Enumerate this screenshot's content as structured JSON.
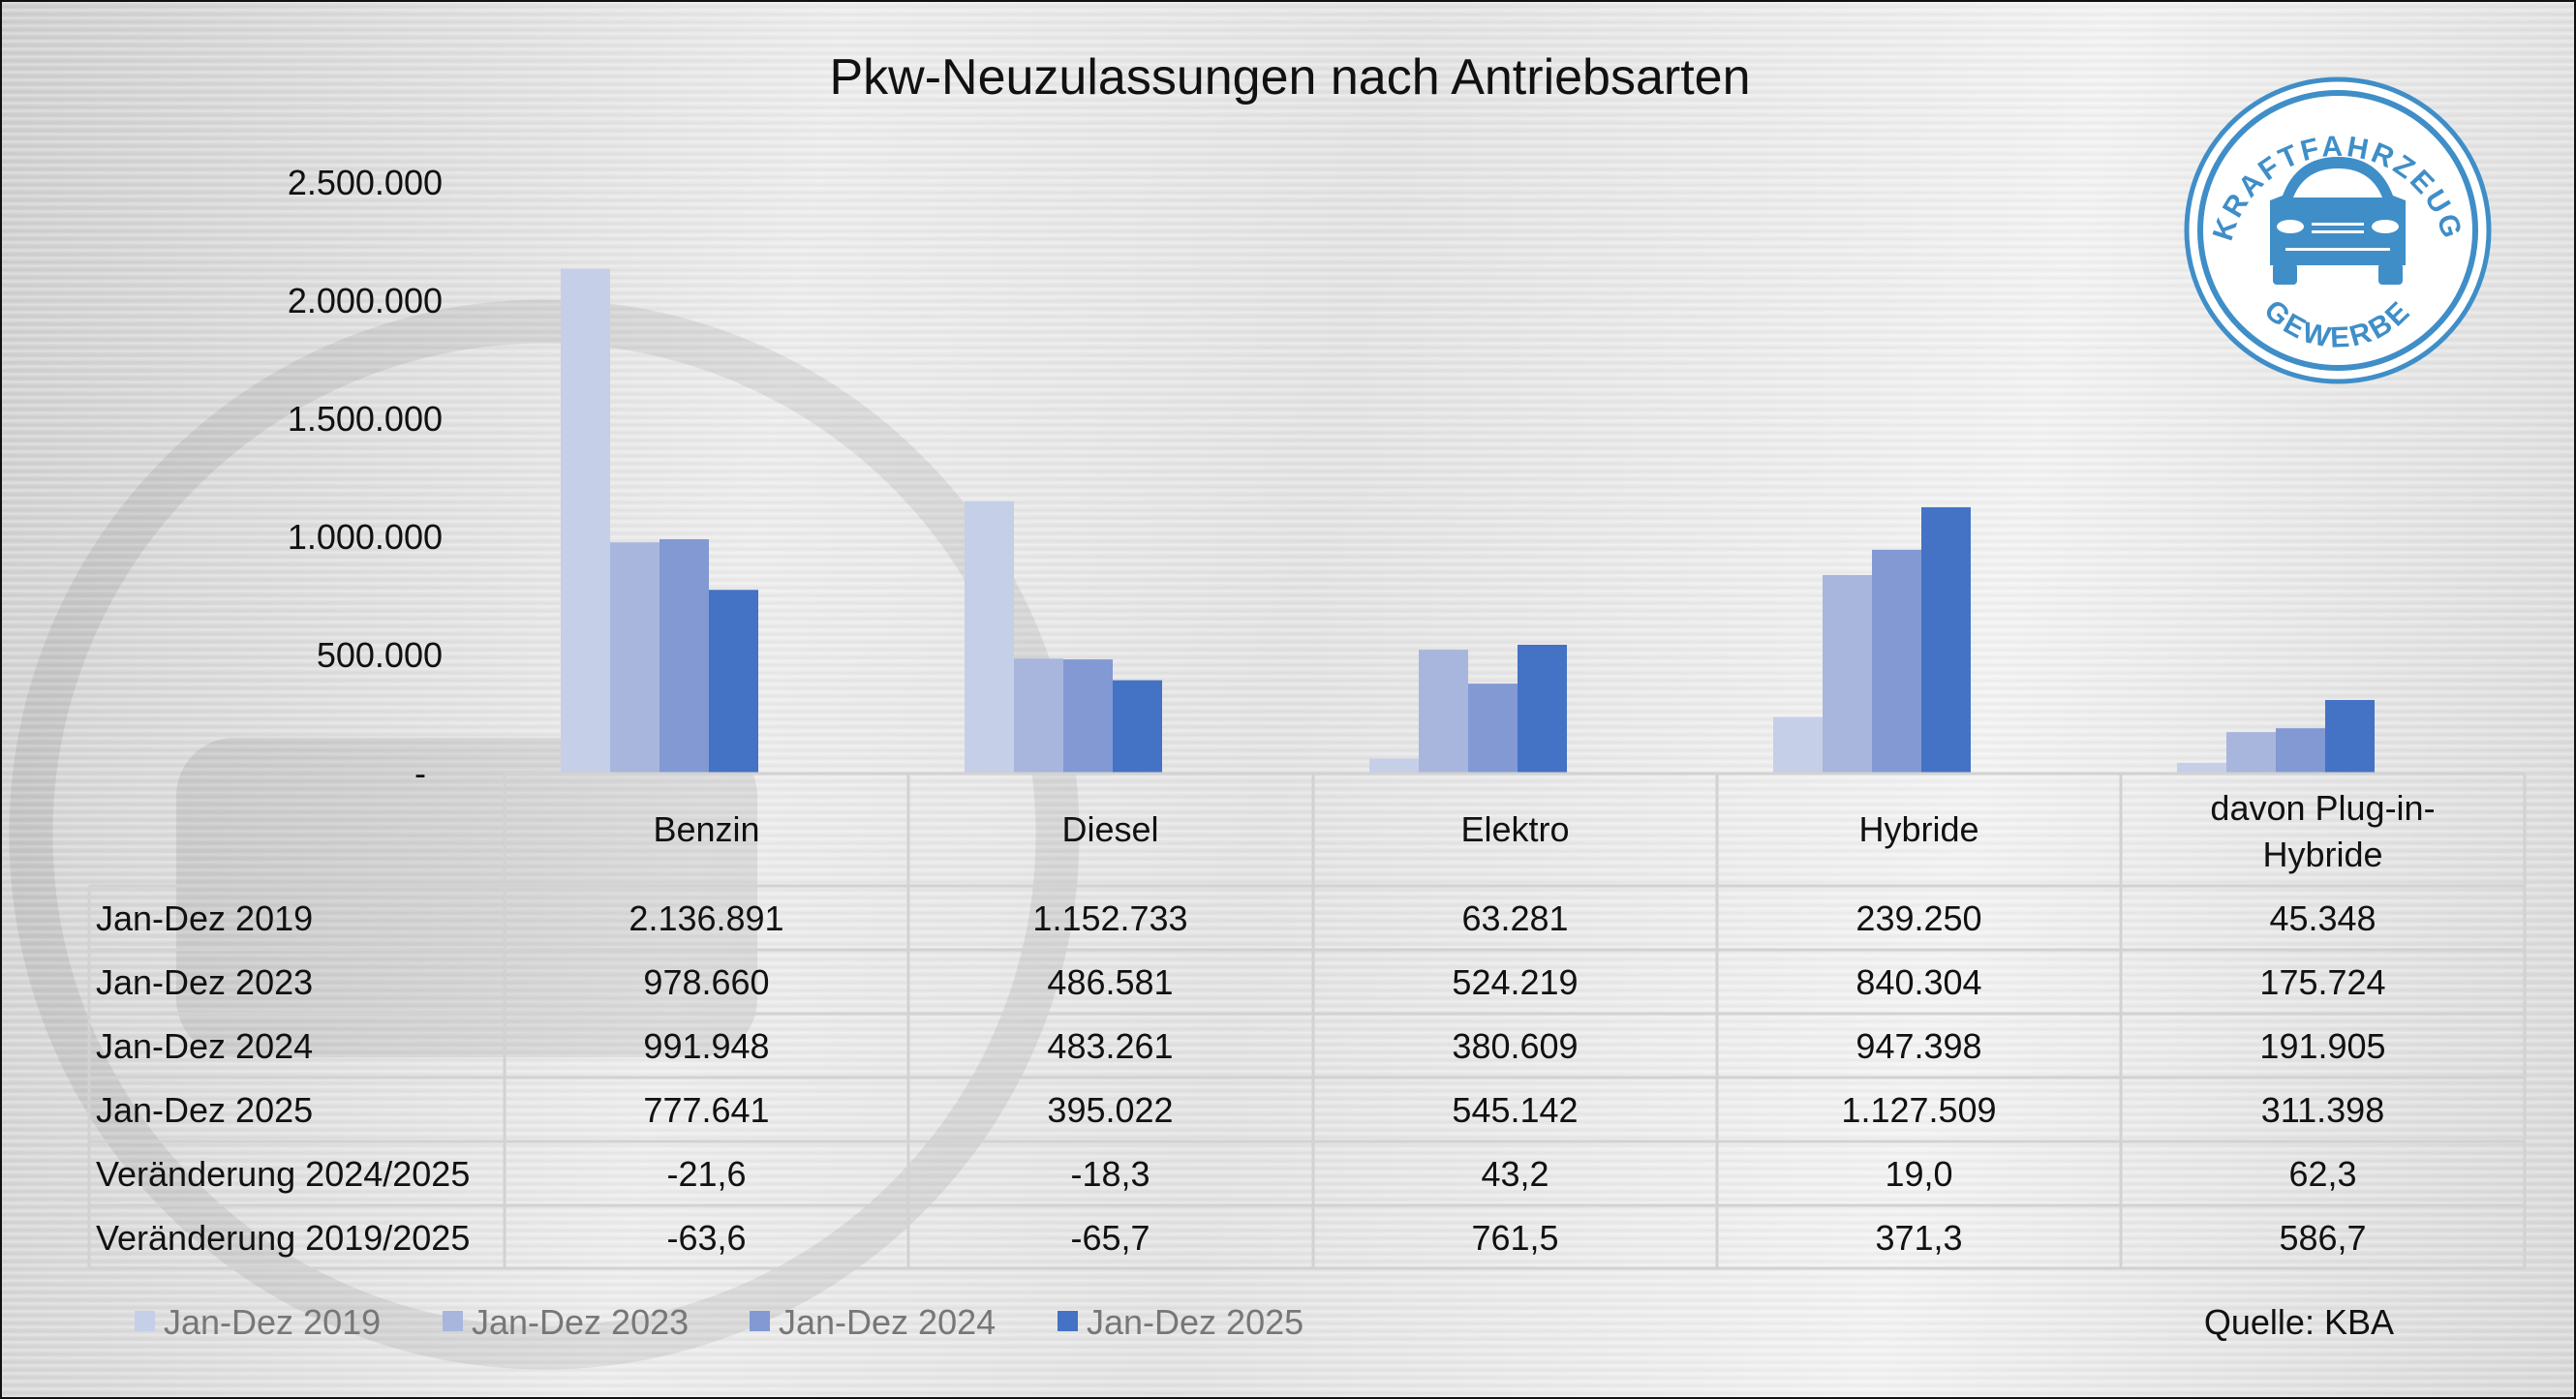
{
  "chart_data": {
    "type": "bar",
    "title": "Pkw-Neuzulassungen nach Antriebsarten",
    "categories": [
      "Benzin",
      "Diesel",
      "Elektro",
      "Hybride",
      "davon Plug-in-Hybride"
    ],
    "category_lines": [
      [
        "Benzin"
      ],
      [
        "Diesel"
      ],
      [
        "Elektro"
      ],
      [
        "Hybride"
      ],
      [
        "davon Plug-in-",
        "Hybride"
      ]
    ],
    "series": [
      {
        "name": "Jan-Dez 2019",
        "color": "#c5cfe8",
        "values": [
          2136891,
          1152733,
          63281,
          239250,
          45348
        ],
        "labels": [
          "2.136.891",
          "1.152.733",
          "63.281",
          "239.250",
          "45.348"
        ]
      },
      {
        "name": "Jan-Dez 2023",
        "color": "#a8b6dd",
        "values": [
          978660,
          486581,
          524219,
          840304,
          175724
        ],
        "labels": [
          "978.660",
          "486.581",
          "524.219",
          "840.304",
          "175.724"
        ]
      },
      {
        "name": "Jan-Dez 2024",
        "color": "#8399d4",
        "values": [
          991948,
          483261,
          380609,
          947398,
          191905
        ],
        "labels": [
          "991.948",
          "483.261",
          "380.609",
          "947.398",
          "191.905"
        ]
      },
      {
        "name": "Jan-Dez 2025",
        "color": "#4472c4",
        "values": [
          777641,
          395022,
          545142,
          1127509,
          311398
        ],
        "labels": [
          "777.641",
          "395.022",
          "545.142",
          "1.127.509",
          "311.398"
        ]
      }
    ],
    "extra_rows": [
      {
        "name": "Veränderung 2024/2025",
        "labels": [
          "-21,6",
          "-18,3",
          "43,2",
          "19,0",
          "62,3"
        ]
      },
      {
        "name": "Veränderung 2019/2025",
        "labels": [
          "-63,6",
          "-65,7",
          "761,5",
          "371,3",
          "586,7"
        ]
      }
    ],
    "ylim": [
      0,
      2500000
    ],
    "yticks": [
      0,
      500000,
      1000000,
      1500000,
      2000000,
      2500000
    ],
    "ytick_labels": [
      "-",
      "500.000",
      "1.000.000",
      "1.500.000",
      "2.000.000",
      "2.500.000"
    ],
    "grid": false,
    "legend_position": "bottom-left",
    "data_table": true,
    "source": "Quelle: KBA"
  },
  "logo": {
    "text_top": "KRAFTFAHRZEUG",
    "text_bottom": "GEWERBE",
    "color": "#3f8ec8"
  }
}
